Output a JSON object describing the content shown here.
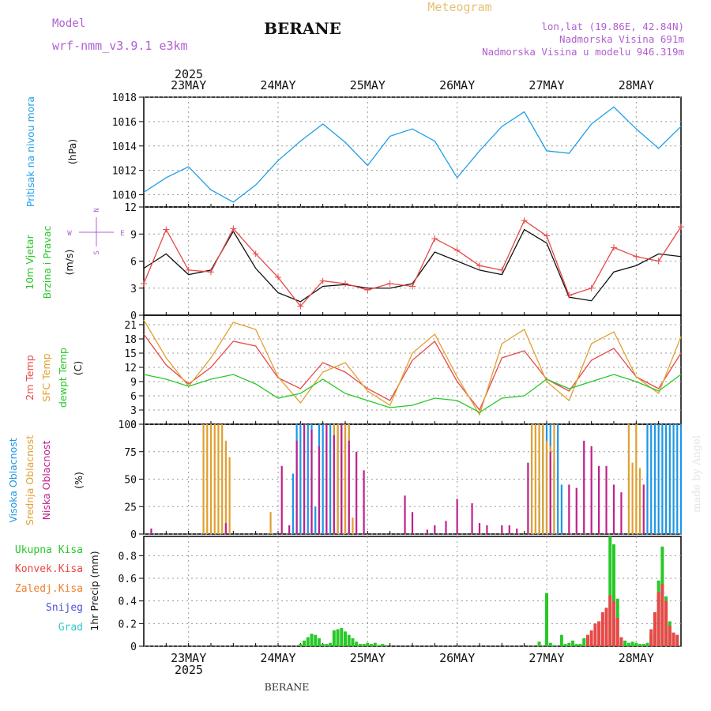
{
  "header": {
    "model_label": "Model",
    "model_name": "wrf-nmm_v3.9.1 e3km",
    "station": "BERANE",
    "meteogram": "Meteogram",
    "lonlat": "lon,lat (19.86E, 42.84N)",
    "elevation": "Nadmorska Visina 691m",
    "model_elevation": "Nadmorska Visina u modelu 946.319m",
    "footer_station": "BERANE",
    "watermark": "made by Angel"
  },
  "colors": {
    "pressure": "#1ea0e6",
    "temp2m": "#e84848",
    "sfc_temp": "#e0a030",
    "dewpt": "#28c828",
    "high_cloud": "#1e96e6",
    "mid_cloud": "#e0a030",
    "low_cloud": "#c0208c",
    "total_precip": "#28c828",
    "conv_precip": "#e84848",
    "frozen_precip": "#f08030",
    "snow": "#5050e0",
    "graupel": "#30c8c8",
    "purple_text": "#b060d0",
    "orange_text": "#e8c070"
  },
  "chart_data": [
    {
      "type": "line",
      "title": "Pritisak na nivou mora",
      "ylabel": "(hPa)",
      "ylim": [
        1009,
        1018
      ],
      "yticks": [
        "1010",
        "1012",
        "1014",
        "1016",
        "1018"
      ],
      "x_hours": [
        0,
        6,
        12,
        18,
        24,
        30,
        36,
        42,
        48,
        54,
        60,
        66,
        72,
        78,
        84,
        90,
        96,
        102,
        108,
        114,
        120,
        126,
        132,
        138,
        144
      ],
      "series": [
        {
          "name": "Pritisak",
          "values": [
            1010.2,
            1011.4,
            1012.3,
            1010.4,
            1009.4,
            1010.8,
            1012.8,
            1014.4,
            1015.8,
            1014.3,
            1012.4,
            1014.8,
            1015.4,
            1014.4,
            1011.4,
            1013.6,
            1015.6,
            1016.8,
            1013.6,
            1013.4,
            1015.8,
            1017.2,
            1015.4,
            1013.8,
            1015.6
          ]
        }
      ]
    },
    {
      "type": "line",
      "title": "10m Vjetar Brzina i Pravac",
      "ylabel": "(m/s)",
      "compass": "N <-|-> E W S",
      "ylim": [
        0,
        12
      ],
      "yticks": [
        "0",
        "3",
        "6",
        "9",
        "12"
      ],
      "x_hours": [
        0,
        6,
        12,
        18,
        24,
        30,
        36,
        42,
        48,
        54,
        60,
        66,
        72,
        78,
        84,
        90,
        96,
        102,
        108,
        114,
        120,
        126,
        132,
        138,
        144
      ],
      "series": [
        {
          "name": "Brzina",
          "values": [
            5.2,
            6.8,
            4.5,
            5.0,
            9.3,
            5.2,
            2.5,
            1.5,
            3.2,
            3.4,
            3.0,
            3.0,
            3.5,
            7.0,
            6.0,
            5.0,
            4.5,
            9.5,
            8.0,
            2.0,
            1.6,
            4.8,
            5.5,
            6.8,
            6.5
          ]
        },
        {
          "name": "Udari",
          "values": [
            3.5,
            9.5,
            5.0,
            4.8,
            9.6,
            6.8,
            4.2,
            1.0,
            3.8,
            3.5,
            2.8,
            3.5,
            3.2,
            8.5,
            7.2,
            5.5,
            5.0,
            10.5,
            8.8,
            2.2,
            3.0,
            7.5,
            6.5,
            6.0,
            9.8
          ]
        }
      ]
    },
    {
      "type": "line",
      "title": "2m Temp / SFC Temp / dewpt Temp",
      "ylabel": "(C)",
      "ylim": [
        0,
        23
      ],
      "yticks": [
        "0",
        "3",
        "6",
        "9",
        "12",
        "15",
        "18",
        "21"
      ],
      "x_hours": [
        0,
        6,
        12,
        18,
        24,
        30,
        36,
        42,
        48,
        54,
        60,
        66,
        72,
        78,
        84,
        90,
        96,
        102,
        108,
        114,
        120,
        126,
        132,
        138,
        144
      ],
      "series": [
        {
          "name": "2m Temp",
          "values": [
            19,
            12.5,
            8.5,
            12,
            17.5,
            16.5,
            9.8,
            7.5,
            13,
            11,
            7.5,
            5,
            13.5,
            17.5,
            9,
            3,
            14,
            15.5,
            9.5,
            7,
            13.5,
            16,
            10,
            7.5,
            15
          ]
        },
        {
          "name": "SFC Temp",
          "values": [
            22,
            14,
            8,
            14,
            21.5,
            20,
            10,
            4.5,
            11,
            13,
            7,
            4,
            15,
            19,
            10,
            2,
            17,
            20,
            9,
            5,
            17,
            19.5,
            10,
            6.5,
            18.5
          ]
        },
        {
          "name": "dewpt Temp",
          "values": [
            10.5,
            9.5,
            8,
            9.5,
            10.5,
            8.5,
            5.5,
            6.5,
            9.5,
            6.5,
            5,
            3.5,
            4,
            5.5,
            5,
            2.5,
            5.5,
            6,
            9.5,
            7.5,
            9,
            10.5,
            9,
            7,
            10.5
          ]
        }
      ]
    },
    {
      "type": "bar",
      "title": "Visoka Oblacnost / Srednja Oblacnost / Niska Oblacnost",
      "ylabel": "(%)",
      "ylim": [
        0,
        100
      ],
      "yticks": [
        "0",
        "25",
        "50",
        "75",
        "100"
      ],
      "series": [
        {
          "name": "Visoka Oblacnost",
          "x_hours": [
            40,
            41,
            42,
            43,
            44,
            45,
            46,
            47,
            48,
            49,
            50,
            51,
            52,
            53,
            54,
            55,
            106,
            107,
            108,
            109,
            110,
            111,
            112,
            135,
            136,
            137,
            138,
            139,
            140,
            141,
            142,
            143,
            144
          ],
          "values": [
            55,
            100,
            100,
            100,
            100,
            100,
            25,
            100,
            100,
            100,
            100,
            100,
            100,
            100,
            100,
            100,
            45,
            100,
            100,
            100,
            65,
            100,
            45,
            100,
            100,
            100,
            100,
            100,
            100,
            100,
            100,
            100,
            100
          ]
        },
        {
          "name": "Srednja Oblacnost",
          "x_hours": [
            16,
            17,
            18,
            19,
            20,
            21,
            22,
            23,
            34,
            51,
            52,
            53,
            54,
            55,
            56,
            104,
            105,
            106,
            107,
            108,
            109,
            110,
            130,
            131,
            132,
            133
          ],
          "values": [
            100,
            100,
            100,
            100,
            100,
            100,
            85,
            70,
            20,
            100,
            100,
            100,
            100,
            100,
            15,
            100,
            100,
            100,
            100,
            85,
            80,
            100,
            100,
            65,
            100,
            60
          ]
        },
        {
          "name": "Niska Oblacnost",
          "x_hours": [
            2,
            22,
            37,
            39,
            41,
            43,
            45,
            47,
            49,
            51,
            53,
            55,
            57,
            59,
            70,
            72,
            76,
            78,
            81,
            84,
            88,
            90,
            92,
            96,
            98,
            100,
            103,
            109,
            114,
            116,
            118,
            120,
            122,
            124,
            126,
            128,
            134
          ],
          "values": [
            5,
            10,
            62,
            8,
            85,
            100,
            95,
            80,
            100,
            90,
            100,
            85,
            75,
            58,
            35,
            20,
            4,
            8,
            12,
            32,
            28,
            10,
            8,
            8,
            8,
            5,
            65,
            75,
            45,
            42,
            85,
            80,
            62,
            62,
            45,
            38,
            45
          ]
        }
      ]
    },
    {
      "type": "bar",
      "title": "1hr Precip",
      "ylabel": "1hr Precip (mm)",
      "legend": [
        "Ukupna Kisa",
        "Konvek.Kisa",
        "Zaledj.Kisa",
        "Snijeg",
        "Grad"
      ],
      "ylim": [
        0,
        0.97
      ],
      "yticks": [
        "0",
        "0.2",
        "0.4",
        "0.6",
        "0.8"
      ],
      "series": [
        {
          "name": "Ukupna Kisa",
          "x_hours": [
            42,
            43,
            44,
            45,
            46,
            47,
            48,
            49,
            50,
            51,
            52,
            53,
            54,
            55,
            56,
            57,
            58,
            59,
            60,
            61,
            62,
            63,
            64,
            65,
            106,
            108,
            109,
            110,
            112,
            113,
            114,
            115,
            116,
            117,
            118,
            119,
            120,
            121,
            122,
            123,
            124,
            125,
            126,
            127,
            128,
            129,
            130,
            131,
            132,
            133,
            134,
            135,
            136,
            137,
            138,
            139,
            140,
            141,
            142,
            143
          ],
          "values": [
            0.02,
            0.05,
            0.08,
            0.11,
            0.1,
            0.07,
            0.02,
            0.02,
            0.03,
            0.14,
            0.15,
            0.16,
            0.13,
            0.1,
            0.07,
            0.04,
            0.02,
            0.02,
            0.03,
            0.02,
            0.03,
            0.01,
            0.02,
            0.01,
            0.04,
            0.47,
            0.03,
            0.01,
            0.1,
            0.02,
            0.03,
            0.05,
            0.02,
            0.02,
            0.07,
            0.1,
            0.02,
            0.02,
            0.02,
            0.01,
            0.02,
            0.97,
            0.9,
            0.42,
            0.03,
            0.05,
            0.03,
            0.04,
            0.03,
            0.02,
            0.02,
            0.03,
            0.1,
            0.2,
            0.58,
            0.88,
            0.44,
            0.22,
            0.12,
            0.1
          ]
        },
        {
          "name": "Konvek.Kisa",
          "x_hours": [
            119,
            120,
            121,
            122,
            123,
            124,
            125,
            126,
            127,
            128,
            136,
            137,
            138,
            139,
            140,
            141,
            142,
            143
          ],
          "values": [
            0.1,
            0.14,
            0.2,
            0.22,
            0.3,
            0.34,
            0.45,
            0.4,
            0.25,
            0.08,
            0.15,
            0.3,
            0.48,
            0.55,
            0.4,
            0.18,
            0.12,
            0.1
          ]
        }
      ]
    }
  ],
  "x_axis": {
    "year_top": "2025",
    "year_bottom": "2025",
    "dates": [
      "23MAY",
      "24MAY",
      "25MAY",
      "26MAY",
      "27MAY",
      "28MAY"
    ]
  },
  "panel_labels": {
    "pressure_title": "Pritisak na nivou mora",
    "pressure_unit": "(hPa)",
    "wind_title1": "10m Vjetar",
    "wind_title2": "Brzina i Pravac",
    "wind_unit": "(m/s)",
    "compass_n": "N",
    "compass_s": "S",
    "compass_w": "W",
    "compass_e": "E",
    "temp_2m": "2m Temp",
    "temp_sfc": "SFC Temp",
    "temp_dew": "dewpt Temp",
    "temp_unit": "(C)",
    "cloud_high": "Visoka Oblacnost",
    "cloud_mid": "Srednja Oblacnost",
    "cloud_low": "Niska Oblacnost",
    "cloud_unit": "(%)",
    "precip_total": "Ukupna Kisa",
    "precip_conv": "Konvek.Kisa",
    "precip_frozen": "Zaledj.Kisa",
    "precip_snow": "Snijeg",
    "precip_grad": "Grad",
    "precip_unit": "1hr Precip (mm)"
  }
}
